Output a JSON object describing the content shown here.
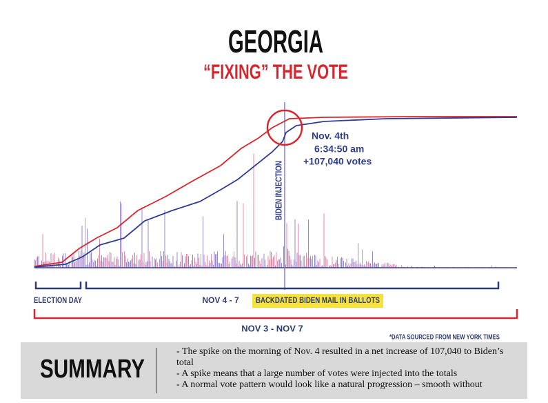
{
  "header": {
    "title": "GEORGIA",
    "subtitle": "“FIXING” THE VOTE"
  },
  "annotation": {
    "date": "Nov. 4th",
    "time": "6:34:50 am",
    "votes": "+107,040 votes",
    "spike_label": "BIDEN INJECTION"
  },
  "ranges": {
    "election_day": "ELECTION DAY",
    "nov4_7": "NOV 4 - 7",
    "highlight": "BACKDATED BIDEN MAIL IN BALLOTS",
    "full": "NOV 3 - NOV 7"
  },
  "source": "*DATA SOURCED FROM NEW YORK TIMES",
  "summary": {
    "heading": "SUMMARY",
    "lines": [
      "- The spike on the morning of Nov. 4 resulted in a net increase of 107,040 to Biden’s total",
      "- A spike means that a large number of votes were injected into the totals",
      "- A normal vote pattern would look like a natural progression – smooth without"
    ]
  }
}
